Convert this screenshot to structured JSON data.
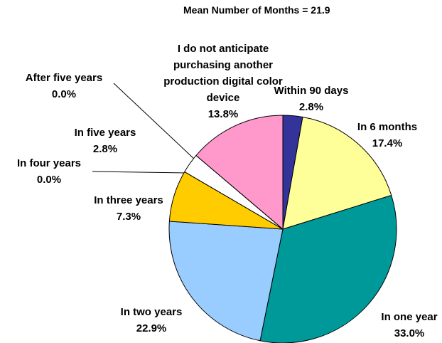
{
  "chart_data": {
    "type": "pie",
    "subtitle": "Mean Number of Months = 21.9",
    "categories": [
      "Within 90 days",
      "In 6 months",
      "In one year",
      "In two years",
      "In three years",
      "In four years",
      "In five years",
      "After five years",
      "I do not anticipate purchasing another production digital color device"
    ],
    "values": [
      2.8,
      17.4,
      33.0,
      22.9,
      7.3,
      0.0,
      2.8,
      0.0,
      13.8
    ],
    "value_labels": [
      "2.8%",
      "17.4%",
      "33.0%",
      "22.9%",
      "7.3%",
      "0.0%",
      "2.8%",
      "0.0%",
      "13.8%"
    ],
    "colors": [
      "#333399",
      "#ffff99",
      "#009999",
      "#99ccff",
      "#ffcc00",
      "#ffffff",
      "#ffffff",
      "#ffffff",
      "#ff99cc"
    ]
  }
}
